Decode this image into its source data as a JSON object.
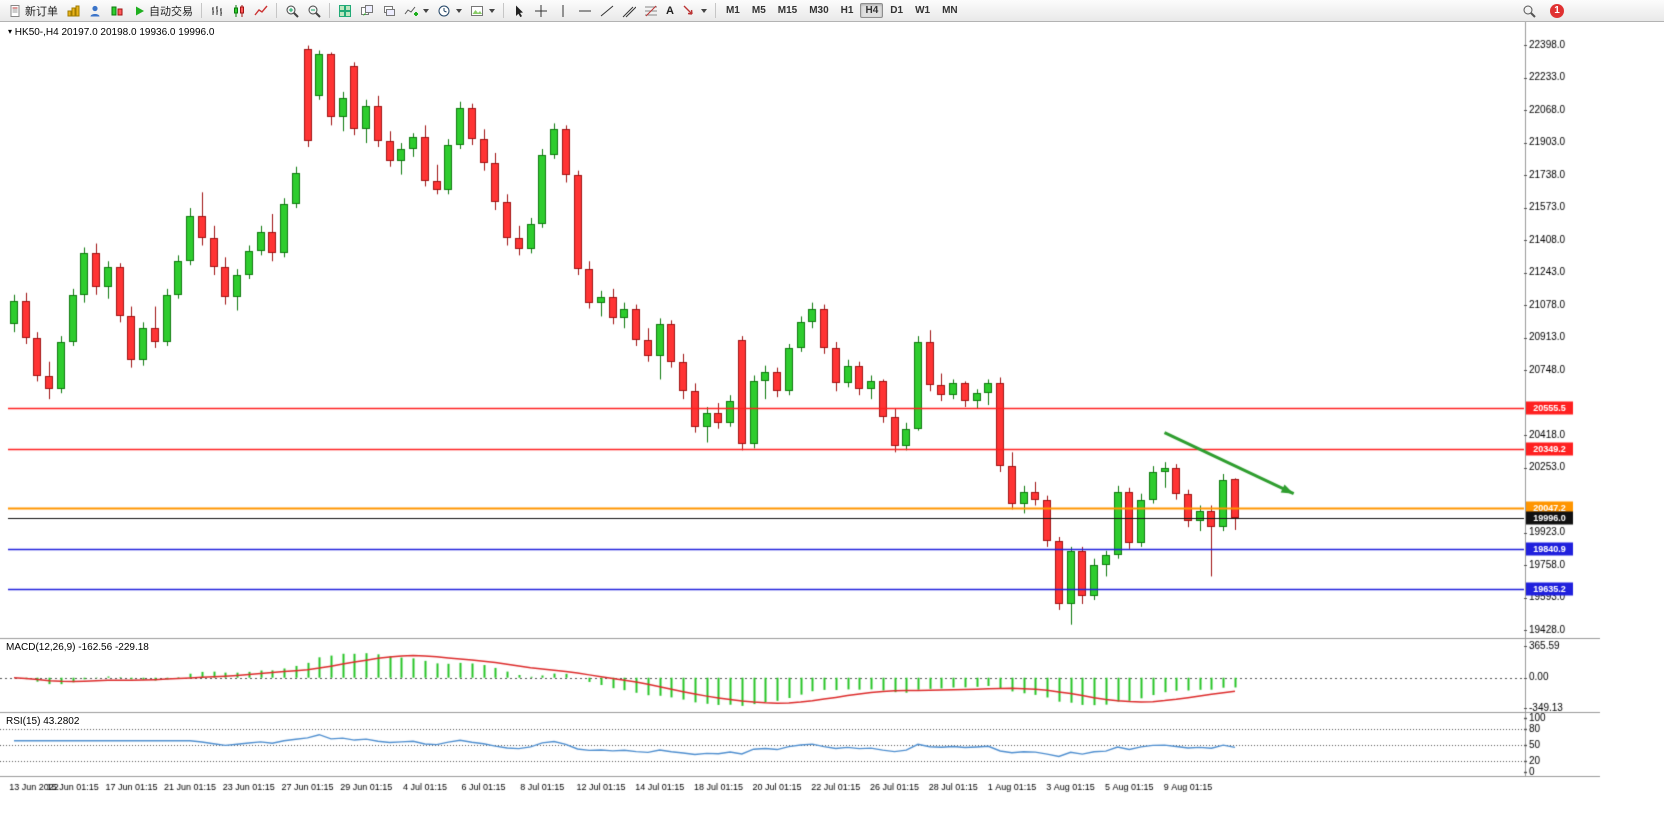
{
  "toolbar": {
    "new_order": "新订单",
    "auto_trading": "自动交易",
    "text_tool": "A",
    "timeframes": [
      "M1",
      "M5",
      "M15",
      "M30",
      "H1",
      "H4",
      "D1",
      "W1",
      "MN"
    ],
    "active_timeframe": "H4",
    "badge_count": "1"
  },
  "chart_header": {
    "symbol": "HK50-,H4",
    "ohlc": "20197.0 20198.0 19936.0 19996.0"
  },
  "indicators": {
    "macd": {
      "label": "MACD(12,26,9)",
      "values": "-162.56 -229.18"
    },
    "rsi": {
      "label": "RSI(15)",
      "value": "43.2802"
    }
  },
  "chart_data": {
    "type": "candlestick",
    "symbol": "HK50-",
    "timeframe": "H4",
    "current_bar": {
      "open": 20197.0,
      "high": 20198.0,
      "low": 19936.0,
      "close": 19996.0
    },
    "y_axis": {
      "max": 22398.0,
      "min": 19428.0,
      "step": 165.0
    },
    "price_lines": [
      {
        "price": 20555.5,
        "label": "20555.5",
        "color": "#ff2020",
        "width": 1.6
      },
      {
        "price": 20349.2,
        "label": "20349.2",
        "color": "#ff2020",
        "width": 1.6
      },
      {
        "price": 20047.2,
        "label": "20047.2",
        "color": "#ff9500",
        "width": 2
      },
      {
        "price": 19996.0,
        "label": "19996.0",
        "color": "#111111",
        "width": 1
      },
      {
        "price": 19840.9,
        "label": "19840.9",
        "color": "#2020dd",
        "width": 1.6
      },
      {
        "price": 19635.2,
        "label": "19635.2",
        "color": "#2020dd",
        "width": 1.6
      }
    ],
    "colors": {
      "bull": "#2ecc2e",
      "bear": "#ff3434",
      "bull_stroke": "#0e7a0e",
      "bear_stroke": "#a01212",
      "background": "#ffffff"
    },
    "candles": [
      [
        20980,
        21130,
        20940,
        21100
      ],
      [
        21100,
        21140,
        20880,
        20910
      ],
      [
        20910,
        20940,
        20690,
        20720
      ],
      [
        20720,
        20790,
        20600,
        20650
      ],
      [
        20650,
        20920,
        20630,
        20890
      ],
      [
        20890,
        21160,
        20870,
        21130
      ],
      [
        21130,
        21370,
        21090,
        21340
      ],
      [
        21340,
        21390,
        21130,
        21170
      ],
      [
        21170,
        21300,
        21110,
        21270
      ],
      [
        21270,
        21290,
        20990,
        21020
      ],
      [
        21020,
        21070,
        20760,
        20800
      ],
      [
        20800,
        20990,
        20770,
        20960
      ],
      [
        20960,
        21070,
        20860,
        20890
      ],
      [
        20890,
        21160,
        20870,
        21130
      ],
      [
        21130,
        21330,
        21110,
        21300
      ],
      [
        21300,
        21570,
        21280,
        21530
      ],
      [
        21530,
        21650,
        21380,
        21420
      ],
      [
        21420,
        21480,
        21230,
        21270
      ],
      [
        21270,
        21320,
        21080,
        21120
      ],
      [
        21120,
        21260,
        21050,
        21230
      ],
      [
        21230,
        21380,
        21210,
        21350
      ],
      [
        21350,
        21480,
        21330,
        21450
      ],
      [
        21450,
        21540,
        21300,
        21340
      ],
      [
        21340,
        21620,
        21320,
        21590
      ],
      [
        21590,
        21780,
        21570,
        21750
      ],
      [
        22380,
        22395,
        21880,
        21910
      ],
      [
        22140,
        22370,
        22120,
        22350
      ],
      [
        22350,
        22360,
        21990,
        22030
      ],
      [
        22030,
        22160,
        21960,
        22130
      ],
      [
        22290,
        22310,
        21940,
        21970
      ],
      [
        21970,
        22120,
        21900,
        22090
      ],
      [
        22090,
        22140,
        21880,
        21910
      ],
      [
        21910,
        21960,
        21780,
        21810
      ],
      [
        21810,
        21900,
        21740,
        21870
      ],
      [
        21870,
        21950,
        21830,
        21930
      ],
      [
        21930,
        21990,
        21680,
        21710
      ],
      [
        21710,
        21790,
        21640,
        21660
      ],
      [
        21660,
        21920,
        21640,
        21890
      ],
      [
        21890,
        22110,
        21870,
        22080
      ],
      [
        22080,
        22100,
        21890,
        21920
      ],
      [
        21920,
        21970,
        21760,
        21800
      ],
      [
        21800,
        21850,
        21560,
        21600
      ],
      [
        21600,
        21640,
        21380,
        21420
      ],
      [
        21420,
        21480,
        21330,
        21360
      ],
      [
        21360,
        21520,
        21340,
        21490
      ],
      [
        21490,
        21870,
        21470,
        21840
      ],
      [
        21840,
        22000,
        21820,
        21970
      ],
      [
        21970,
        21990,
        21700,
        21740
      ],
      [
        21740,
        21760,
        21230,
        21260
      ],
      [
        21260,
        21300,
        21060,
        21090
      ],
      [
        21090,
        21150,
        21020,
        21120
      ],
      [
        21120,
        21160,
        20980,
        21010
      ],
      [
        21010,
        21090,
        20960,
        21060
      ],
      [
        21060,
        21080,
        20870,
        20900
      ],
      [
        20900,
        20960,
        20790,
        20820
      ],
      [
        20820,
        21010,
        20700,
        20980
      ],
      [
        20980,
        21000,
        20760,
        20790
      ],
      [
        20790,
        20830,
        20600,
        20640
      ],
      [
        20640,
        20680,
        20430,
        20460
      ],
      [
        20460,
        20560,
        20380,
        20530
      ],
      [
        20530,
        20580,
        20450,
        20480
      ],
      [
        20480,
        20620,
        20460,
        20590
      ],
      [
        20900,
        20920,
        20340,
        20370
      ],
      [
        20370,
        20720,
        20350,
        20690
      ],
      [
        20690,
        20770,
        20600,
        20740
      ],
      [
        20740,
        20760,
        20610,
        20640
      ],
      [
        20640,
        20880,
        20620,
        20860
      ],
      [
        20860,
        21020,
        20840,
        20990
      ],
      [
        20990,
        21090,
        20960,
        21060
      ],
      [
        21060,
        21080,
        20830,
        20860
      ],
      [
        20860,
        20890,
        20640,
        20680
      ],
      [
        20680,
        20800,
        20660,
        20770
      ],
      [
        20770,
        20790,
        20620,
        20650
      ],
      [
        20650,
        20720,
        20600,
        20690
      ],
      [
        20690,
        20700,
        20480,
        20510
      ],
      [
        20510,
        20550,
        20330,
        20360
      ],
      [
        20360,
        20480,
        20340,
        20450
      ],
      [
        20450,
        20920,
        20440,
        20890
      ],
      [
        20890,
        20950,
        20640,
        20670
      ],
      [
        20670,
        20730,
        20590,
        20620
      ],
      [
        20620,
        20700,
        20600,
        20680
      ],
      [
        20680,
        20690,
        20560,
        20590
      ],
      [
        20590,
        20650,
        20550,
        20630
      ],
      [
        20630,
        20700,
        20570,
        20680
      ],
      [
        20680,
        20710,
        20230,
        20260
      ],
      [
        20260,
        20330,
        20040,
        20070
      ],
      [
        20070,
        20160,
        20020,
        20130
      ],
      [
        20130,
        20180,
        20060,
        20090
      ],
      [
        20090,
        20110,
        19850,
        19880
      ],
      [
        19880,
        19900,
        19530,
        19560
      ],
      [
        19560,
        19850,
        19455,
        19830
      ],
      [
        19830,
        19850,
        19560,
        19600
      ],
      [
        19600,
        19790,
        19580,
        19760
      ],
      [
        19760,
        19830,
        19700,
        19810
      ],
      [
        19810,
        20160,
        19790,
        20130
      ],
      [
        20130,
        20150,
        19840,
        19870
      ],
      [
        19870,
        20120,
        19850,
        20090
      ],
      [
        20090,
        20260,
        20070,
        20230
      ],
      [
        20230,
        20280,
        20150,
        20250
      ],
      [
        20250,
        20270,
        20090,
        20120
      ],
      [
        20120,
        20140,
        19950,
        19980
      ],
      [
        19980,
        20060,
        19930,
        20030
      ],
      [
        20030,
        20060,
        19700,
        19950
      ],
      [
        19950,
        20220,
        19930,
        20190
      ],
      [
        20197,
        20198,
        19936,
        19996
      ]
    ],
    "x_labels": [
      {
        "index": 0,
        "label": "13 Jun 2022"
      },
      {
        "index": 5,
        "label": "15 Jun 01:15"
      },
      {
        "index": 10,
        "label": "17 Jun 01:15"
      },
      {
        "index": 15,
        "label": "21 Jun 01:15"
      },
      {
        "index": 20,
        "label": "23 Jun 01:15"
      },
      {
        "index": 25,
        "label": "27 Jun 01:15"
      },
      {
        "index": 30,
        "label": "29 Jun 01:15"
      },
      {
        "index": 35,
        "label": "4 Jul 01:15"
      },
      {
        "index": 40,
        "label": "6 Jul 01:15"
      },
      {
        "index": 45,
        "label": "8 Jul 01:15"
      },
      {
        "index": 50,
        "label": "12 Jul 01:15"
      },
      {
        "index": 55,
        "label": "14 Jul 01:15"
      },
      {
        "index": 60,
        "label": "18 Jul 01:15"
      },
      {
        "index": 65,
        "label": "20 Jul 01:15"
      },
      {
        "index": 70,
        "label": "22 Jul 01:15"
      },
      {
        "index": 75,
        "label": "26 Jul 01:15"
      },
      {
        "index": 80,
        "label": "28 Jul 01:15"
      },
      {
        "index": 85,
        "label": "1 Aug 01:15"
      },
      {
        "index": 90,
        "label": "3 Aug 01:15"
      },
      {
        "index": 95,
        "label": "5 Aug 01:15"
      },
      {
        "index": 100,
        "label": "9 Aug 01:15"
      }
    ],
    "trend_arrow": {
      "from": {
        "index": 98,
        "price": 20430
      },
      "to": {
        "index": 109,
        "price": 20120
      },
      "color": "#2f9e2f",
      "width": 3
    },
    "macd": {
      "params": [
        12,
        26,
        9
      ],
      "main_value": -162.56,
      "signal_value": -229.18,
      "ticks": [
        365.59,
        0.0,
        -349.13
      ],
      "bar_color": "#27c427",
      "signal_color": "#dd2c2c"
    },
    "rsi": {
      "period": 15,
      "value": 43.2802,
      "ticks": [
        100,
        80,
        50,
        20,
        0
      ],
      "levels": [
        80,
        50,
        20
      ],
      "line_color": "#4f8fd0"
    }
  }
}
